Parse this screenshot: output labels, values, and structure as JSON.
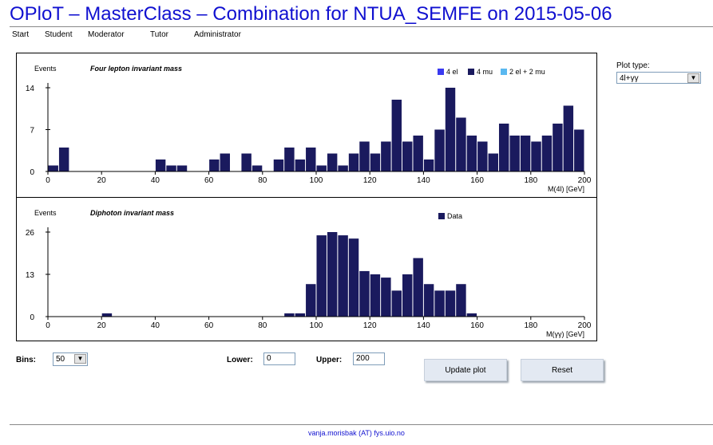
{
  "header": {
    "title": "OPloT – MasterClass – Combination for NTUA_SEMFE on 2015-05-06"
  },
  "nav": {
    "items": [
      "Start",
      "Student",
      "Moderator",
      "Tutor",
      "Administrator"
    ]
  },
  "plot_type": {
    "label": "Plot type:",
    "selected": "4l+γγ"
  },
  "controls": {
    "bins_label": "Bins:",
    "bins_value": "50",
    "lower_label": "Lower:",
    "lower_value": "0",
    "upper_label": "Upper:",
    "upper_value": "200",
    "update_button": "Update plot",
    "reset_button": "Reset"
  },
  "footer": {
    "contact": "vanja.morisbak (AT) fys.uio.no"
  },
  "colors": {
    "el": "#3a3af0",
    "mu": "#1a1a5e",
    "elmu": "#5ab8f0",
    "data": "#1a1a5e",
    "title": "#1010d0"
  },
  "chart_data": [
    {
      "type": "bar",
      "title": "Four lepton invariant mass",
      "ylabel": "Events",
      "xlabel": "M(4l) [GeV]",
      "xlim": [
        0,
        200
      ],
      "ylim": [
        0,
        14
      ],
      "yticks": [
        0,
        7,
        14
      ],
      "xticks": [
        0,
        20,
        40,
        60,
        80,
        100,
        120,
        140,
        160,
        180,
        200
      ],
      "bin_width": 4,
      "legend_placement": "top-right",
      "legend": [
        "4 el",
        "4 mu",
        "2 el + 2 mu"
      ],
      "x": [
        0,
        4,
        8,
        12,
        16,
        20,
        24,
        28,
        32,
        36,
        40,
        44,
        48,
        52,
        56,
        60,
        64,
        68,
        72,
        76,
        80,
        84,
        88,
        92,
        96,
        100,
        104,
        108,
        112,
        116,
        120,
        124,
        128,
        132,
        136,
        140,
        144,
        148,
        152,
        156,
        160,
        164,
        168,
        172,
        176,
        180,
        184,
        188,
        192,
        196
      ],
      "series": [
        {
          "name": "4 mu",
          "values": [
            1,
            4,
            0,
            0,
            0,
            0,
            0,
            0,
            0,
            0,
            2,
            1,
            1,
            0,
            0,
            2,
            3,
            0,
            3,
            1,
            0,
            2,
            4,
            2,
            4,
            1,
            3,
            1,
            3,
            5,
            3,
            5,
            12,
            5,
            6,
            2,
            7,
            14,
            9,
            6,
            5,
            3,
            8,
            6,
            6,
            5,
            6,
            8,
            11,
            7
          ]
        }
      ]
    },
    {
      "type": "bar",
      "title": "Diphoton invariant mass",
      "ylabel": "Events",
      "xlabel": "M(γγ) [GeV]",
      "xlim": [
        0,
        200
      ],
      "ylim": [
        0,
        26
      ],
      "yticks": [
        0,
        13,
        26
      ],
      "xticks": [
        0,
        20,
        40,
        60,
        80,
        100,
        120,
        140,
        160,
        180,
        200
      ],
      "bin_width": 4,
      "legend_placement": "top-right",
      "legend": [
        "Data"
      ],
      "x": [
        0,
        4,
        8,
        12,
        16,
        20,
        24,
        28,
        32,
        36,
        40,
        44,
        48,
        52,
        56,
        60,
        64,
        68,
        72,
        76,
        80,
        84,
        88,
        92,
        96,
        100,
        104,
        108,
        112,
        116,
        120,
        124,
        128,
        132,
        136,
        140,
        144,
        148,
        152,
        156,
        160,
        164,
        168,
        172,
        176,
        180,
        184,
        188,
        192,
        196
      ],
      "series": [
        {
          "name": "Data",
          "values": [
            0,
            0,
            0,
            0,
            0,
            1,
            0,
            0,
            0,
            0,
            0,
            0,
            0,
            0,
            0,
            0,
            0,
            0,
            0,
            0,
            0,
            0,
            1,
            1,
            10,
            25,
            26,
            25,
            24,
            14,
            13,
            12,
            8,
            13,
            18,
            10,
            8,
            8,
            10,
            1,
            0,
            0,
            0,
            0,
            0,
            0,
            0,
            0,
            0,
            0
          ]
        }
      ]
    }
  ]
}
